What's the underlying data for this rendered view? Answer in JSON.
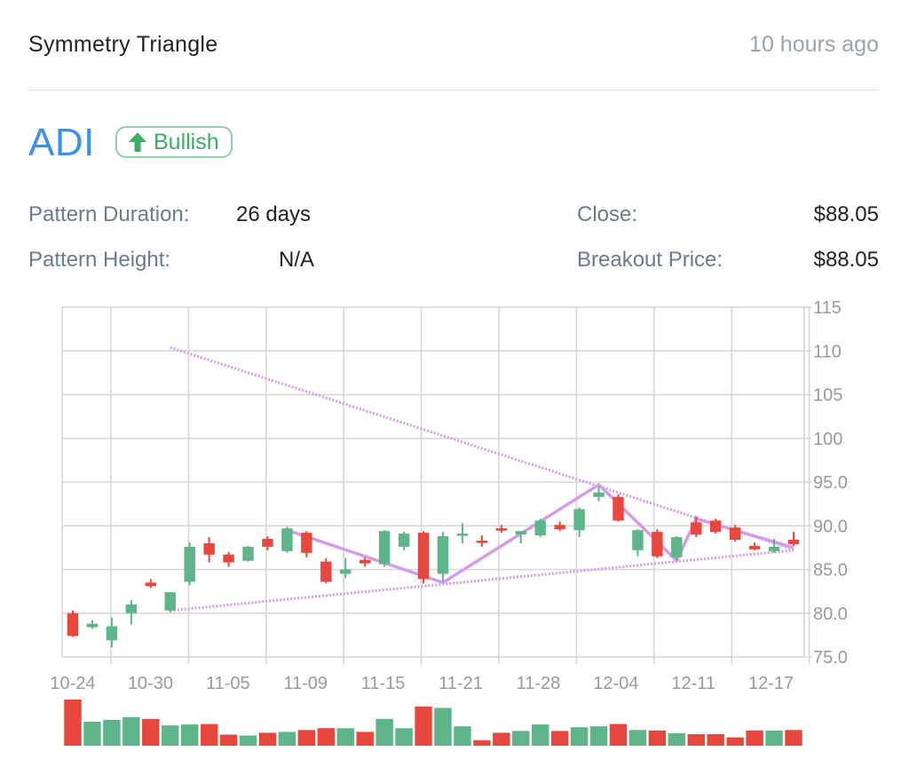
{
  "header": {
    "pattern_name": "Symmetry Triangle",
    "time_ago": "10 hours ago"
  },
  "ticker": {
    "symbol": "ADI",
    "badge_label": "Bullish",
    "badge_icon": "arrow-up-icon"
  },
  "stats": {
    "duration_label": "Pattern Duration:",
    "duration_value": "26 days",
    "height_label": "Pattern Height:",
    "height_value": "N/A",
    "close_label": "Close:",
    "close_value": "$88.05",
    "breakout_label": "Breakout Price:",
    "breakout_value": "$88.05"
  },
  "colors": {
    "up": "#5fb58a",
    "down": "#e8473e",
    "ticker": "#3d8fe8",
    "pattern_line": "#d49be8",
    "grid": "#d6d6d6",
    "axis_text": "#9a9a9a"
  },
  "chart_data": {
    "type": "candlestick",
    "ylim": [
      75,
      115
    ],
    "y_ticks": [
      "75.0",
      "80.0",
      "85.0",
      "90.0",
      "95.0",
      "100",
      "105",
      "110",
      "115"
    ],
    "x_tick_labels": [
      "10-24",
      "10-30",
      "11-05",
      "11-09",
      "11-15",
      "11-21",
      "11-28",
      "12-04",
      "12-11",
      "12-17"
    ],
    "grid": true,
    "candles": [
      {
        "o": 80.0,
        "h": 80.3,
        "l": 77.3,
        "c": 77.4
      },
      {
        "o": 78.4,
        "h": 79.2,
        "l": 78.2,
        "c": 78.8
      },
      {
        "o": 76.9,
        "h": 79.5,
        "l": 76.1,
        "c": 78.5
      },
      {
        "o": 80.0,
        "h": 81.5,
        "l": 78.7,
        "c": 81.0
      },
      {
        "o": 83.5,
        "h": 83.9,
        "l": 82.9,
        "c": 83.1
      },
      {
        "o": 80.3,
        "h": 82.4,
        "l": 80.1,
        "c": 82.4
      },
      {
        "o": 83.6,
        "h": 88.1,
        "l": 83.2,
        "c": 87.6
      },
      {
        "o": 88.0,
        "h": 88.7,
        "l": 85.8,
        "c": 86.7
      },
      {
        "o": 86.7,
        "h": 87.0,
        "l": 85.3,
        "c": 85.8
      },
      {
        "o": 86.0,
        "h": 87.7,
        "l": 85.9,
        "c": 87.6
      },
      {
        "o": 88.5,
        "h": 88.8,
        "l": 87.2,
        "c": 87.6
      },
      {
        "o": 87.1,
        "h": 89.9,
        "l": 86.9,
        "c": 89.7
      },
      {
        "o": 89.2,
        "h": 89.4,
        "l": 86.4,
        "c": 86.9
      },
      {
        "o": 85.9,
        "h": 86.3,
        "l": 83.4,
        "c": 83.6
      },
      {
        "o": 84.5,
        "h": 86.3,
        "l": 84.0,
        "c": 85.0
      },
      {
        "o": 86.1,
        "h": 86.4,
        "l": 85.3,
        "c": 85.7
      },
      {
        "o": 85.6,
        "h": 89.5,
        "l": 85.3,
        "c": 89.4
      },
      {
        "o": 87.6,
        "h": 89.3,
        "l": 87.2,
        "c": 89.1
      },
      {
        "o": 89.2,
        "h": 89.4,
        "l": 83.4,
        "c": 83.9
      },
      {
        "o": 84.5,
        "h": 89.3,
        "l": 83.6,
        "c": 88.8
      },
      {
        "o": 88.9,
        "h": 90.3,
        "l": 88.0,
        "c": 89.1
      },
      {
        "o": 88.3,
        "h": 88.9,
        "l": 87.6,
        "c": 88.2
      },
      {
        "o": 89.7,
        "h": 90.1,
        "l": 89.2,
        "c": 89.6
      },
      {
        "o": 89.0,
        "h": 89.3,
        "l": 88.0,
        "c": 89.4
      },
      {
        "o": 88.9,
        "h": 90.8,
        "l": 88.7,
        "c": 90.6
      },
      {
        "o": 90.1,
        "h": 90.5,
        "l": 89.4,
        "c": 89.6
      },
      {
        "o": 89.5,
        "h": 92.1,
        "l": 88.7,
        "c": 91.9
      },
      {
        "o": 93.3,
        "h": 94.5,
        "l": 92.8,
        "c": 93.8
      },
      {
        "o": 93.3,
        "h": 93.6,
        "l": 90.5,
        "c": 90.6
      },
      {
        "o": 87.2,
        "h": 89.6,
        "l": 86.5,
        "c": 89.5
      },
      {
        "o": 89.3,
        "h": 89.6,
        "l": 86.3,
        "c": 86.5
      },
      {
        "o": 86.4,
        "h": 88.8,
        "l": 86.0,
        "c": 88.7
      },
      {
        "o": 90.4,
        "h": 91.1,
        "l": 88.7,
        "c": 89.0
      },
      {
        "o": 90.6,
        "h": 90.8,
        "l": 89.1,
        "c": 89.3
      },
      {
        "o": 89.8,
        "h": 90.1,
        "l": 88.2,
        "c": 88.4
      },
      {
        "o": 87.7,
        "h": 88.1,
        "l": 87.2,
        "c": 87.3
      },
      {
        "o": 87.1,
        "h": 88.5,
        "l": 86.9,
        "c": 87.6
      },
      {
        "o": 88.4,
        "h": 89.3,
        "l": 87.7,
        "c": 87.9
      }
    ],
    "volume": [
      1.0,
      0.52,
      0.56,
      0.62,
      0.58,
      0.44,
      0.46,
      0.47,
      0.24,
      0.22,
      0.28,
      0.3,
      0.34,
      0.38,
      0.38,
      0.3,
      0.58,
      0.38,
      0.85,
      0.82,
      0.42,
      0.12,
      0.28,
      0.32,
      0.46,
      0.32,
      0.4,
      0.42,
      0.47,
      0.34,
      0.33,
      0.27,
      0.25,
      0.25,
      0.18,
      0.33,
      0.33,
      0.34
    ],
    "pattern_zigzag": [
      {
        "i": 11,
        "y": 89.5
      },
      {
        "i": 19,
        "y": 83.5
      },
      {
        "i": 27,
        "y": 94.7
      },
      {
        "i": 31,
        "y": 86.0
      },
      {
        "i": 32,
        "y": 90.8
      },
      {
        "i": 37,
        "y": 87.5
      }
    ],
    "trendline_upper": [
      {
        "i": 5,
        "y": 110.4
      },
      {
        "i": 37,
        "y": 87.3
      }
    ],
    "trendline_lower": [
      {
        "i": 5,
        "y": 80.3
      },
      {
        "i": 37,
        "y": 87.2
      }
    ]
  }
}
